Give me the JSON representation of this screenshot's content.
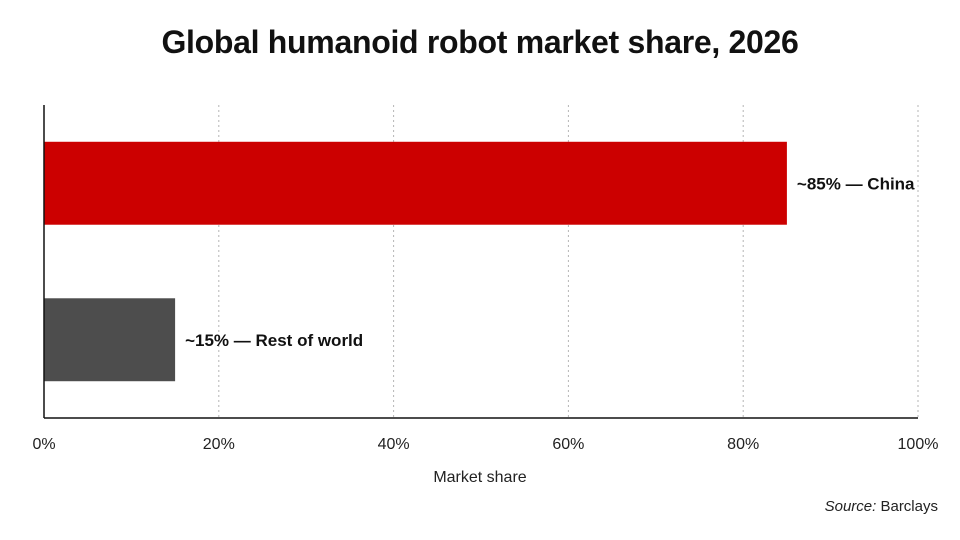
{
  "chart_data": {
    "type": "bar",
    "orientation": "horizontal",
    "title": "Global humanoid robot market share, 2026",
    "categories": [
      "China",
      "Rest of world"
    ],
    "values": [
      85,
      15
    ],
    "data_labels": [
      "~85% — China",
      "~15% — Rest of world"
    ],
    "colors": [
      "#cc0000",
      "#4d4d4d"
    ],
    "xlabel": "Market share",
    "ylabel": "",
    "xlim": [
      0,
      100
    ],
    "xticks": [
      0,
      20,
      40,
      60,
      80,
      100
    ],
    "xtick_labels": [
      "0%",
      "20%",
      "40%",
      "60%",
      "80%",
      "100%"
    ],
    "grid": "vertical dotted",
    "legend": "none"
  },
  "source": {
    "label": "Source:",
    "text": "Barclays"
  }
}
